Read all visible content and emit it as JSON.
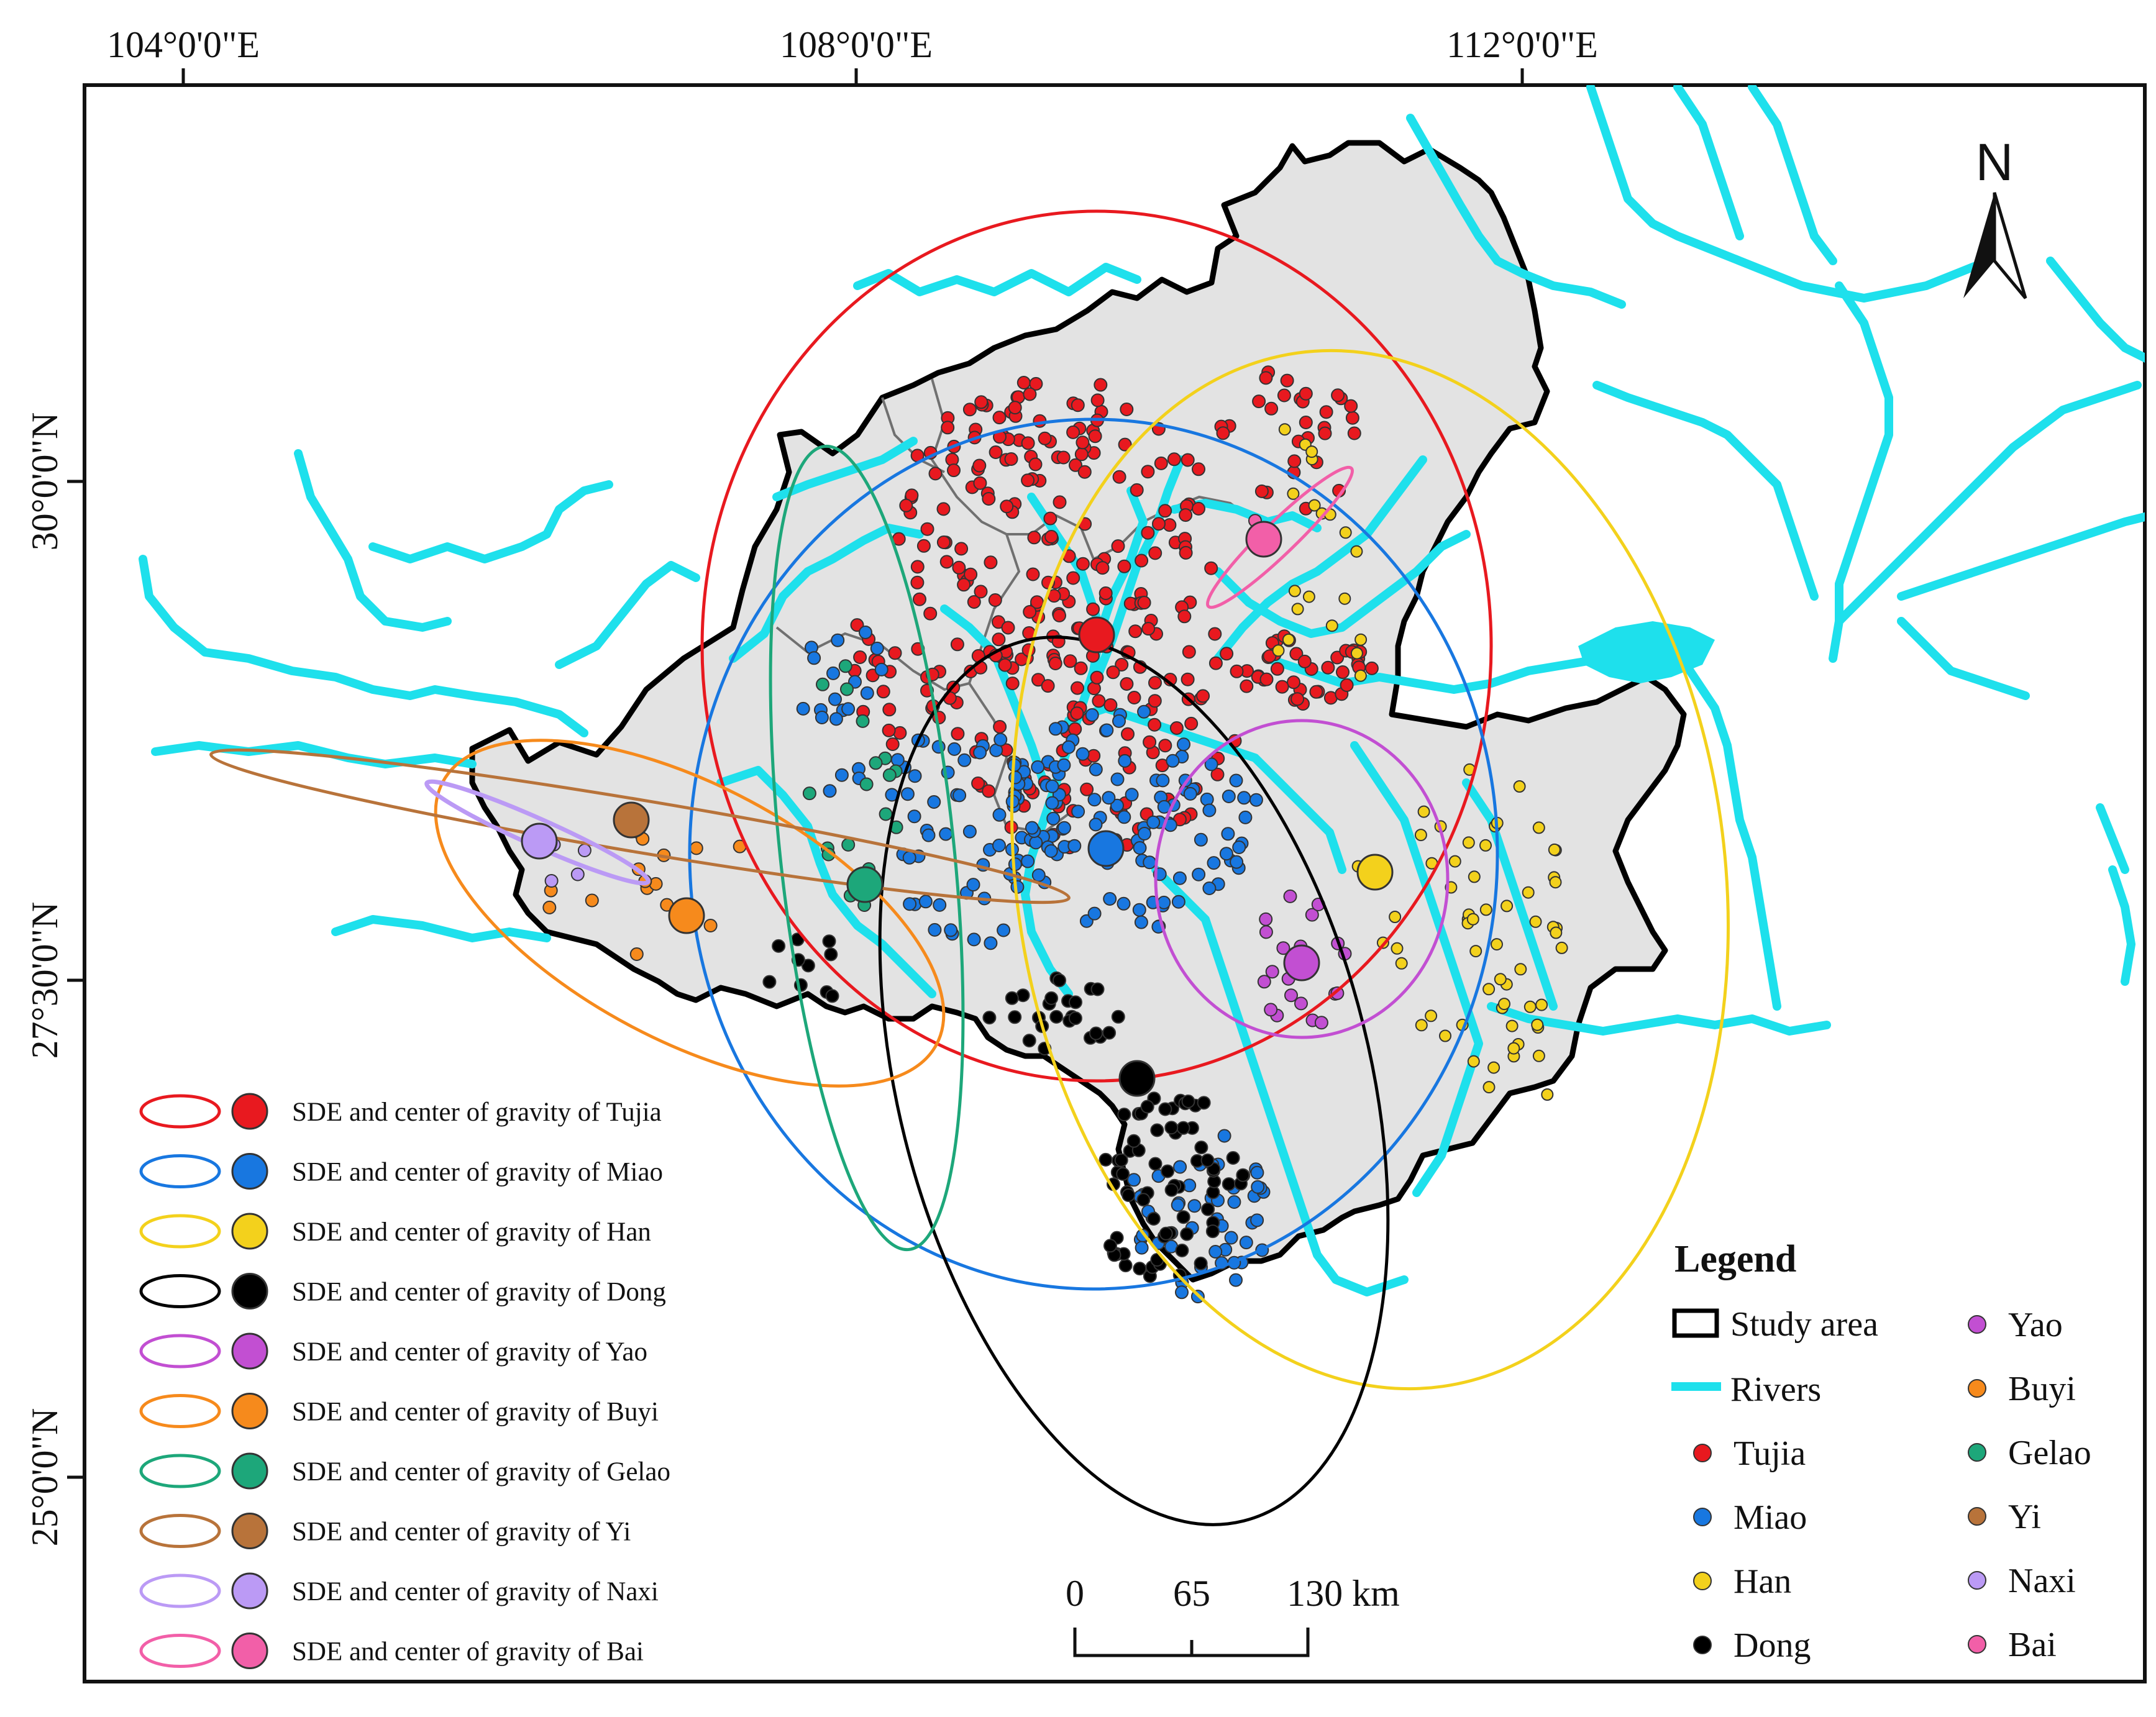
{
  "map": {
    "lon_labels": [
      "104°0'0\"E",
      "108°0'0\"E",
      "112°0'0\"E"
    ],
    "lat_labels": [
      "30°0'0\"N",
      "27°30'0\"N",
      "25°0'0\"N"
    ],
    "north_label": "N",
    "colors": {
      "study_area_fill": "#e3e3e3",
      "study_area_border": "#000000",
      "rivers": "#1ee0ec",
      "internal_borders": "#707070"
    }
  },
  "groups": [
    {
      "name": "Tujia",
      "color": "#e8191f",
      "sde_label": "SDE and center of gravity of Tujia"
    },
    {
      "name": "Miao",
      "color": "#1877e0",
      "sde_label": "SDE and center of gravity of Miao"
    },
    {
      "name": "Han",
      "color": "#f3d11c",
      "sde_label": "SDE and center of gravity of Han"
    },
    {
      "name": "Dong",
      "color": "#000000",
      "sde_label": "SDE and center of gravity of Dong"
    },
    {
      "name": "Yao",
      "color": "#c24fd2",
      "sde_label": "SDE and center of gravity of Yao"
    },
    {
      "name": "Buyi",
      "color": "#f68a1c",
      "sde_label": "SDE and center of gravity of Buyi"
    },
    {
      "name": "Gelao",
      "color": "#1da77a",
      "sde_label": "SDE and center of gravity of Gelao"
    },
    {
      "name": "Yi",
      "color": "#b8733a",
      "sde_label": "SDE and center of gravity of Yi"
    },
    {
      "name": "Naxi",
      "color": "#bb9af5",
      "sde_label": "SDE and center of gravity of Naxi"
    },
    {
      "name": "Bai",
      "color": "#f25fa8",
      "sde_label": "SDE and center of gravity of Bai"
    }
  ],
  "legend": {
    "title": "Legend",
    "study_area": "Study area",
    "rivers": "Rivers",
    "items_left": [
      "Tujia",
      "Miao",
      "Han",
      "Dong"
    ],
    "items_right": [
      "Yao",
      "Buyi",
      "Gelao",
      "Yi",
      "Naxi",
      "Bai"
    ]
  },
  "scale_bar": {
    "labels": [
      "0",
      "65",
      "130 km"
    ]
  }
}
